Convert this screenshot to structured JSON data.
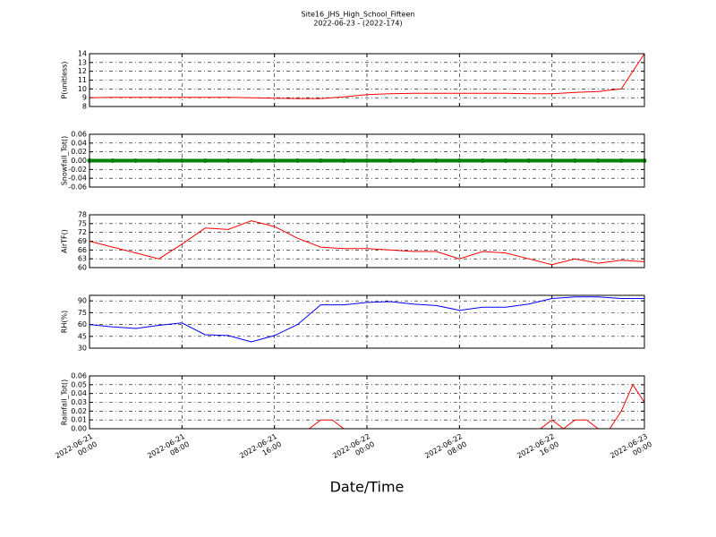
{
  "title": "Site16_JHS_High_School_Fifteen",
  "subtitle": "2022-06-23 - (2022-174)",
  "x_axis": {
    "label": "Date/Time",
    "xlim": [
      "2022-06-21 00:00",
      "2022-06-23 00:00"
    ],
    "xticks": [
      {
        "value": "2022-06-21 00:00",
        "label": "2022-06-21\n00:00"
      },
      {
        "value": "2022-06-21 08:00",
        "label": "2022-06-21\n08:00"
      },
      {
        "value": "2022-06-21 16:00",
        "label": "2022-06-21\n16:00"
      },
      {
        "value": "2022-06-22 00:00",
        "label": "2022-06-22\n00:00"
      },
      {
        "value": "2022-06-22 08:00",
        "label": "2022-06-22\n08:00"
      },
      {
        "value": "2022-06-22 16:00",
        "label": "2022-06-22\n16:00"
      },
      {
        "value": "2022-06-23 00:00",
        "label": "2022-06-23\n00:00"
      }
    ]
  },
  "chart_data": [
    {
      "type": "line",
      "ylabel": "P(unitless)",
      "color": "#ff0000",
      "grid": true,
      "ylim": [
        8,
        14
      ],
      "yticks": [
        8,
        9,
        10,
        11,
        12,
        13,
        14
      ],
      "x": [
        "2022-06-21 00:00",
        "2022-06-21 02:00",
        "2022-06-21 04:00",
        "2022-06-21 06:00",
        "2022-06-21 08:00",
        "2022-06-21 10:00",
        "2022-06-21 12:00",
        "2022-06-21 14:00",
        "2022-06-21 16:00",
        "2022-06-21 18:00",
        "2022-06-21 20:00",
        "2022-06-21 22:00",
        "2022-06-22 00:00",
        "2022-06-22 02:00",
        "2022-06-22 04:00",
        "2022-06-22 06:00",
        "2022-06-22 08:00",
        "2022-06-22 10:00",
        "2022-06-22 12:00",
        "2022-06-22 14:00",
        "2022-06-22 16:00",
        "2022-06-22 18:00",
        "2022-06-22 20:00",
        "2022-06-22 22:00",
        "2022-06-23 00:00"
      ],
      "values": [
        9.0,
        9.05,
        9.05,
        9.05,
        9.05,
        9.05,
        9.05,
        9.0,
        8.95,
        8.9,
        8.9,
        9.1,
        9.35,
        9.45,
        9.5,
        9.5,
        9.5,
        9.5,
        9.5,
        9.45,
        9.45,
        9.6,
        9.7,
        10.0,
        14.0
      ]
    },
    {
      "type": "line",
      "ylabel": "Snowfall_Tot()",
      "color": "#008000",
      "markers": true,
      "grid": true,
      "ylim": [
        -0.06,
        0.06
      ],
      "yticks": [
        -0.06,
        -0.04,
        -0.02,
        {
          "value": 0,
          "label": "0.00"
        },
        0.02,
        0.04,
        0.06
      ],
      "x": [
        "2022-06-21 00:00",
        "2022-06-21 02:00",
        "2022-06-21 04:00",
        "2022-06-21 06:00",
        "2022-06-21 08:00",
        "2022-06-21 10:00",
        "2022-06-21 12:00",
        "2022-06-21 14:00",
        "2022-06-21 16:00",
        "2022-06-21 18:00",
        "2022-06-21 20:00",
        "2022-06-21 22:00",
        "2022-06-22 00:00",
        "2022-06-22 02:00",
        "2022-06-22 04:00",
        "2022-06-22 06:00",
        "2022-06-22 08:00",
        "2022-06-22 10:00",
        "2022-06-22 12:00",
        "2022-06-22 14:00",
        "2022-06-22 16:00",
        "2022-06-22 18:00",
        "2022-06-22 20:00",
        "2022-06-22 22:00",
        "2022-06-23 00:00"
      ],
      "values": [
        0,
        0,
        0,
        0,
        0,
        0,
        0,
        0,
        0,
        0,
        0,
        0,
        0,
        0,
        0,
        0,
        0,
        0,
        0,
        0,
        0,
        0,
        0,
        0,
        0
      ]
    },
    {
      "type": "line",
      "ylabel": "AirTF()",
      "color": "#ff0000",
      "grid": true,
      "ylim": [
        60,
        78
      ],
      "yticks": [
        60,
        63,
        66,
        69,
        72,
        75,
        78
      ],
      "x": [
        "2022-06-21 00:00",
        "2022-06-21 02:00",
        "2022-06-21 04:00",
        "2022-06-21 06:00",
        "2022-06-21 08:00",
        "2022-06-21 10:00",
        "2022-06-21 12:00",
        "2022-06-21 14:00",
        "2022-06-21 16:00",
        "2022-06-21 18:00",
        "2022-06-21 20:00",
        "2022-06-21 22:00",
        "2022-06-22 00:00",
        "2022-06-22 02:00",
        "2022-06-22 04:00",
        "2022-06-22 06:00",
        "2022-06-22 08:00",
        "2022-06-22 10:00",
        "2022-06-22 12:00",
        "2022-06-22 14:00",
        "2022-06-22 16:00",
        "2022-06-22 18:00",
        "2022-06-22 20:00",
        "2022-06-22 22:00",
        "2022-06-23 00:00"
      ],
      "values": [
        69,
        67,
        65,
        63,
        68,
        73.5,
        73,
        76,
        74,
        70,
        67,
        66.5,
        66.5,
        66,
        65.5,
        65.5,
        63,
        65.5,
        65,
        63,
        61,
        63,
        61.5,
        62.5,
        62
      ]
    },
    {
      "type": "line",
      "ylabel": "RH(%)",
      "color": "#0000ff",
      "grid": true,
      "ylim": [
        30,
        97
      ],
      "yticks": [
        30,
        45,
        60,
        75,
        90
      ],
      "x": [
        "2022-06-21 00:00",
        "2022-06-21 02:00",
        "2022-06-21 04:00",
        "2022-06-21 06:00",
        "2022-06-21 08:00",
        "2022-06-21 10:00",
        "2022-06-21 12:00",
        "2022-06-21 14:00",
        "2022-06-21 16:00",
        "2022-06-21 18:00",
        "2022-06-21 20:00",
        "2022-06-21 22:00",
        "2022-06-22 00:00",
        "2022-06-22 02:00",
        "2022-06-22 04:00",
        "2022-06-22 06:00",
        "2022-06-22 08:00",
        "2022-06-22 10:00",
        "2022-06-22 12:00",
        "2022-06-22 14:00",
        "2022-06-22 16:00",
        "2022-06-22 18:00",
        "2022-06-22 20:00",
        "2022-06-22 22:00",
        "2022-06-23 00:00"
      ],
      "values": [
        60,
        57,
        55,
        59,
        62,
        47,
        46,
        38,
        46,
        60,
        85,
        85,
        88,
        89,
        86,
        84,
        78,
        82,
        82,
        86,
        93,
        95,
        95,
        93,
        93
      ]
    },
    {
      "type": "line",
      "ylabel": "Rainfall_Tot()",
      "color": "#ff0000",
      "grid": true,
      "ylim": [
        0,
        0.06
      ],
      "yticks": [
        {
          "value": 0,
          "label": "0.00"
        },
        0.01,
        0.02,
        0.03,
        0.04,
        0.05,
        0.06
      ],
      "x": [
        "2022-06-21 00:00",
        "2022-06-21 01:00",
        "2022-06-21 02:00",
        "2022-06-21 03:00",
        "2022-06-21 04:00",
        "2022-06-21 05:00",
        "2022-06-21 06:00",
        "2022-06-21 07:00",
        "2022-06-21 08:00",
        "2022-06-21 09:00",
        "2022-06-21 10:00",
        "2022-06-21 11:00",
        "2022-06-21 12:00",
        "2022-06-21 13:00",
        "2022-06-21 14:00",
        "2022-06-21 15:00",
        "2022-06-21 16:00",
        "2022-06-21 17:00",
        "2022-06-21 18:00",
        "2022-06-21 19:00",
        "2022-06-21 20:00",
        "2022-06-21 21:00",
        "2022-06-21 22:00",
        "2022-06-21 23:00",
        "2022-06-22 00:00",
        "2022-06-22 01:00",
        "2022-06-22 02:00",
        "2022-06-22 03:00",
        "2022-06-22 04:00",
        "2022-06-22 05:00",
        "2022-06-22 06:00",
        "2022-06-22 07:00",
        "2022-06-22 08:00",
        "2022-06-22 09:00",
        "2022-06-22 10:00",
        "2022-06-22 11:00",
        "2022-06-22 12:00",
        "2022-06-22 13:00",
        "2022-06-22 14:00",
        "2022-06-22 15:00",
        "2022-06-22 16:00",
        "2022-06-22 17:00",
        "2022-06-22 18:00",
        "2022-06-22 19:00",
        "2022-06-22 20:00",
        "2022-06-22 21:00",
        "2022-06-22 22:00",
        "2022-06-22 23:00",
        "2022-06-23 00:00"
      ],
      "values": [
        0,
        0,
        0,
        0,
        0,
        0,
        0,
        0,
        0,
        0,
        0,
        0,
        0,
        0,
        0,
        0,
        0,
        0,
        0,
        0,
        0.01,
        0.01,
        0,
        0,
        0,
        0,
        0,
        0,
        0,
        0,
        0,
        0,
        0,
        0,
        0,
        0,
        0,
        0,
        0,
        0,
        0.01,
        0,
        0.01,
        0.01,
        0,
        0,
        0.02,
        0.05,
        0.03
      ]
    }
  ]
}
